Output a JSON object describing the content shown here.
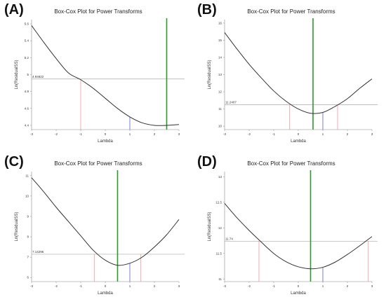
{
  "chart_data": [
    {
      "id": "A",
      "type": "line",
      "panel_label": "(A)",
      "title": "Box-Cox Plot for Power Transforms",
      "xlabel": "Lambda",
      "ylabel": "Ln(ResidualSS)",
      "xlim": [
        -3,
        3
      ],
      "ylim": [
        4.35,
        5.65
      ],
      "xticks": [
        -3,
        -2,
        -1,
        0,
        1,
        2,
        3
      ],
      "yticks": [
        4.4,
        4.6,
        4.8,
        5,
        5.2,
        5.4,
        5.6
      ],
      "ytick_labels": [
        "4.4",
        "4.6",
        "4.8",
        "5",
        "5.2",
        "5.4",
        "5.6"
      ],
      "curve": {
        "x": [
          -3,
          -2.5,
          -2,
          -1.5,
          -1,
          -0.5,
          0,
          0.5,
          1,
          1.5,
          2,
          2.5,
          3
        ],
        "y": [
          5.58,
          5.38,
          5.19,
          5.02,
          4.94,
          4.84,
          4.72,
          4.6,
          4.5,
          4.43,
          4.4,
          4.4,
          4.41
        ]
      },
      "ci_line_y": 4.94822,
      "ci_label": "4.94822",
      "ci_bounds": [
        -1.0
      ],
      "current_lambda": 1,
      "best_lambda": 2.5
    },
    {
      "id": "B",
      "type": "line",
      "panel_label": "(B)",
      "title": "Box-Cox Plot for Power Transforms",
      "xlabel": "Lambda",
      "ylabel": "Ln(ResidualSS)",
      "xlim": [
        -3,
        3
      ],
      "ylim": [
        9.8,
        16.2
      ],
      "xticks": [
        -3,
        -2,
        -1,
        0,
        1,
        2,
        3
      ],
      "yticks": [
        10,
        11,
        12,
        13,
        14,
        15,
        16
      ],
      "ytick_labels": [
        "10",
        "11",
        "12",
        "13",
        "14",
        "15",
        "16"
      ],
      "curve": {
        "x": [
          -3,
          -2.5,
          -2,
          -1.5,
          -1,
          -0.5,
          0,
          0.5,
          1,
          1.5,
          2,
          2.5,
          3
        ],
        "y": [
          15.45,
          14.5,
          13.6,
          12.8,
          12.05,
          11.45,
          11.0,
          10.75,
          10.8,
          11.15,
          11.6,
          12.2,
          12.75
        ]
      },
      "ci_line_y": 11.2407,
      "ci_label": "11.2407",
      "ci_bounds": [
        -0.35,
        1.6
      ],
      "current_lambda": 1,
      "best_lambda": 0.6
    },
    {
      "id": "C",
      "type": "line",
      "panel_label": "(C)",
      "title": "Box-Cox Plot for Power Transforms",
      "xlabel": "Lambda",
      "ylabel": "Ln(ResidualSS)",
      "xlim": [
        -3,
        3
      ],
      "ylim": [
        5.8,
        11.2
      ],
      "xticks": [
        -3,
        -2,
        -1,
        0,
        1,
        2,
        3
      ],
      "yticks": [
        6,
        7,
        8,
        9,
        10,
        11
      ],
      "ytick_labels": [
        "6",
        "7",
        "8",
        "9",
        "10",
        "11"
      ],
      "curve": {
        "x": [
          -3,
          -2.5,
          -2,
          -1.5,
          -1,
          -0.5,
          0,
          0.5,
          1,
          1.5,
          2,
          2.5,
          3
        ],
        "y": [
          10.9,
          10.2,
          9.45,
          8.75,
          8.05,
          7.35,
          6.85,
          6.6,
          6.7,
          7.0,
          7.5,
          8.1,
          8.85
        ]
      },
      "ci_line_y": 7.14296,
      "ci_label": "7.14296",
      "ci_bounds": [
        -0.45,
        1.45
      ],
      "current_lambda": 1,
      "best_lambda": 0.5
    },
    {
      "id": "D",
      "type": "line",
      "panel_label": "(D)",
      "title": "Box-Cox Plot for Power Transforms",
      "xlabel": "Lambda",
      "ylabel": "Ln(ResidualSS)",
      "xlim": [
        -3,
        3
      ],
      "ylim": [
        10.95,
        13.1
      ],
      "xticks": [
        -3,
        -2,
        -1,
        0,
        1,
        2,
        3
      ],
      "yticks": [
        11,
        11.5,
        12,
        12.5,
        13
      ],
      "ytick_labels": [
        "11",
        "11.5",
        "12",
        "12.5",
        "13"
      ],
      "curve": {
        "x": [
          -3,
          -2.5,
          -2,
          -1.5,
          -1,
          -0.5,
          0,
          0.5,
          1,
          1.5,
          2,
          2.5,
          3
        ],
        "y": [
          12.48,
          12.2,
          11.95,
          11.72,
          11.5,
          11.34,
          11.24,
          11.2,
          11.23,
          11.33,
          11.48,
          11.65,
          11.83
        ]
      },
      "ci_line_y": 11.74,
      "ci_label": "11.74",
      "ci_bounds": [
        -1.6,
        2.85
      ],
      "current_lambda": 1,
      "best_lambda": 0.5
    }
  ]
}
